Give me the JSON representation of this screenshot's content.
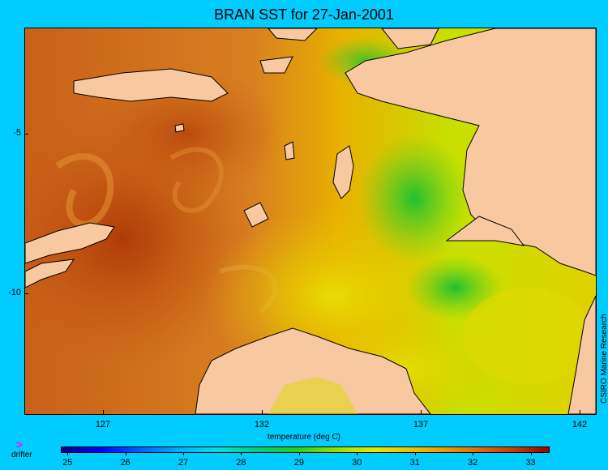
{
  "title": "BRAN SST for 27-Jan-2001",
  "map": {
    "x_ticks": [
      "127",
      "132",
      "137",
      "142"
    ],
    "y_ticks": [
      "-5",
      "-10"
    ],
    "xlabel": "temperature (deg C)",
    "land_color": "#f8c8a0",
    "coast_color": "#000000"
  },
  "colorbar": {
    "ticks": [
      "25",
      "26",
      "27",
      "28",
      "29",
      "30",
      "31",
      "32",
      "33"
    ],
    "min": 24.9,
    "max": 33.3
  },
  "legend": {
    "drifter_symbol": ">",
    "drifter_label": "drifter",
    "drifter_color": "#ff00ff"
  },
  "credit": "CSIRO Marine Research"
}
